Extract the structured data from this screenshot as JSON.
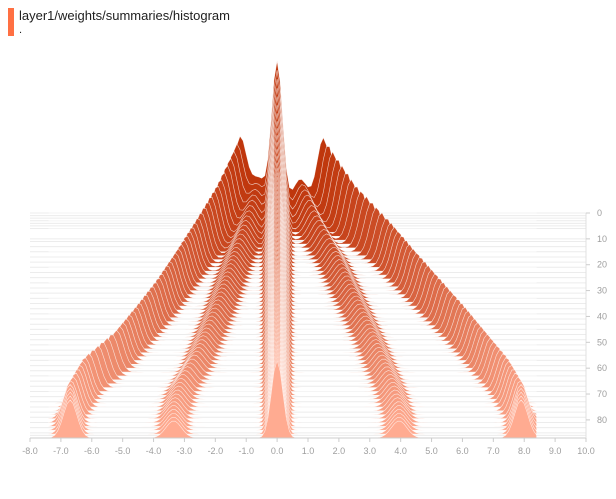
{
  "card": {
    "title": "layer1/weights/summaries/histogram",
    "subtitle": ".",
    "tag_color": "#ff7043"
  },
  "chart_data": {
    "type": "histogram",
    "mode": "offset",
    "x_ticks": [
      "-8.0",
      "-7.0",
      "-6.0",
      "-5.0",
      "-4.0",
      "-3.0",
      "-2.0",
      "-1.0",
      "0.0",
      "1.0",
      "2.0",
      "3.0",
      "4.0",
      "5.0",
      "6.0",
      "7.0",
      "8.0",
      "9.0",
      "10.0"
    ],
    "xlim": [
      -8.0,
      10.0
    ],
    "y_ticks": [
      "0",
      "10",
      "20",
      "30",
      "40",
      "50",
      "60",
      "70",
      "80"
    ],
    "ylim": [
      0,
      87
    ],
    "step_markers": [
      0,
      1,
      2,
      3,
      4,
      5,
      6,
      10,
      11,
      13,
      15,
      17,
      19,
      21,
      23,
      25,
      27,
      29,
      31,
      33,
      35,
      37,
      39,
      41,
      43,
      45,
      47,
      49,
      51,
      53,
      55,
      57,
      59,
      61,
      63,
      65,
      67,
      69,
      71,
      73,
      75,
      77,
      79,
      81,
      83,
      85,
      86
    ],
    "color_start": "#bf360c",
    "color_end": "#ffab91",
    "steps": [
      {
        "step": 0,
        "left_peak": -1.2,
        "right_peak": 1.5,
        "center_height": 150,
        "side_height": 75
      },
      {
        "step": 10,
        "left_peak": -1.9,
        "right_peak": 2.5,
        "center_height": 120,
        "side_height": 55
      },
      {
        "step": 20,
        "left_peak": -2.6,
        "right_peak": 3.6,
        "center_height": 100,
        "side_height": 45
      },
      {
        "step": 30,
        "left_peak": -3.2,
        "right_peak": 4.4,
        "center_height": 95,
        "side_height": 42
      },
      {
        "step": 40,
        "left_peak": -3.8,
        "right_peak": 5.2,
        "center_height": 90,
        "side_height": 40
      },
      {
        "step": 50,
        "left_peak": -4.5,
        "right_peak": 6.0,
        "center_height": 85,
        "side_height": 38
      },
      {
        "step": 60,
        "left_peak": -5.2,
        "right_peak": 6.7,
        "center_height": 82,
        "side_height": 38
      },
      {
        "step": 70,
        "left_peak": -6.2,
        "right_peak": 7.4,
        "center_height": 80,
        "side_height": 38
      },
      {
        "step": 80,
        "left_peak": -6.7,
        "right_peak": 7.9,
        "center_height": 78,
        "side_height": 38
      }
    ]
  }
}
